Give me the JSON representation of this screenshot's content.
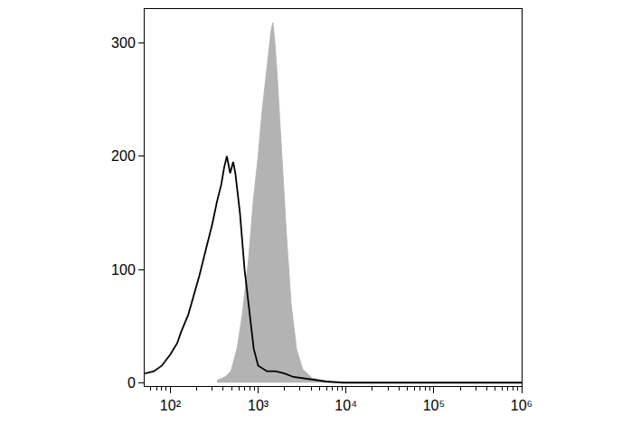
{
  "chart_data": {
    "type": "line",
    "log": "x",
    "grid": false,
    "xlim": [
      51,
      1000000
    ],
    "ylim": [
      -3,
      330
    ],
    "xticks": [
      {
        "value": 100,
        "label": "10²"
      },
      {
        "value": 1000,
        "label": "10³"
      },
      {
        "value": 10000,
        "label": "10⁴"
      },
      {
        "value": 100000,
        "label": "10⁵"
      },
      {
        "value": 1000000,
        "label": "10⁶"
      }
    ],
    "yticks": [
      0,
      100,
      200,
      300
    ],
    "series": [
      {
        "type": "area",
        "color": "#b3b3b3",
        "x": [
          340,
          420,
          490,
          575,
          660,
          780,
          880,
          1000,
          1110,
          1260,
          1400,
          1470,
          1550,
          1650,
          1860,
          2100,
          2370,
          2730,
          3200,
          4100,
          5800,
          10000
        ],
        "values": [
          2,
          5,
          10,
          30,
          60,
          110,
          160,
          200,
          240,
          280,
          310,
          318,
          300,
          270,
          200,
          130,
          70,
          30,
          12,
          4,
          1,
          0
        ]
      },
      {
        "type": "line",
        "color": "#000000",
        "x": [
          51,
          65,
          80,
          100,
          120,
          133,
          160,
          190,
          215,
          240,
          270,
          300,
          340,
          380,
          410,
          440,
          480,
          520,
          550,
          620,
          700,
          800,
          890,
          1000,
          1130,
          1260,
          1580,
          2000,
          2530,
          3200,
          4500,
          6000,
          9300,
          20000,
          100000,
          1000000
        ],
        "values": [
          8,
          10,
          15,
          25,
          35,
          45,
          60,
          80,
          95,
          110,
          125,
          140,
          160,
          175,
          190,
          200,
          185,
          195,
          185,
          150,
          100,
          60,
          30,
          15,
          12,
          10,
          10,
          8,
          5,
          4,
          2,
          1,
          0,
          0,
          0,
          0
        ]
      }
    ]
  }
}
